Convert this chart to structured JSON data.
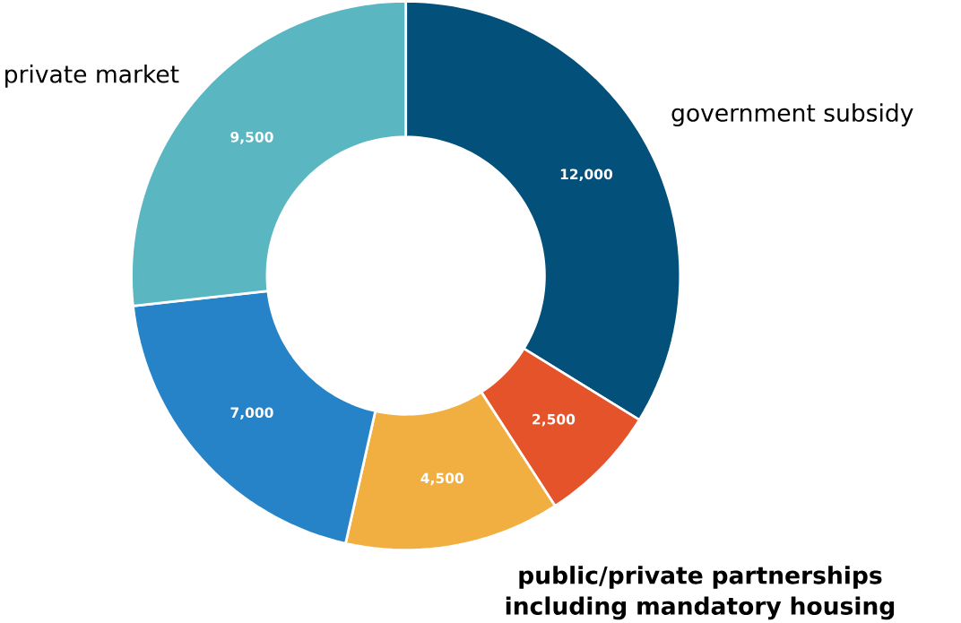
{
  "chart_data": {
    "type": "donut",
    "categories": [
      "government subsidy",
      null,
      null,
      null,
      "private market"
    ],
    "values": [
      12000,
      2500,
      4500,
      7000,
      9500
    ],
    "colors": [
      "#03507a",
      "#e5532a",
      "#f1ae41",
      "#2783c7",
      "#5ab6c1"
    ],
    "value_labels": [
      "12,000",
      "2,500",
      "4,500",
      "7,000",
      "9,500"
    ],
    "annotations": [
      "public/private partnerships including mandatory housing"
    ]
  }
}
